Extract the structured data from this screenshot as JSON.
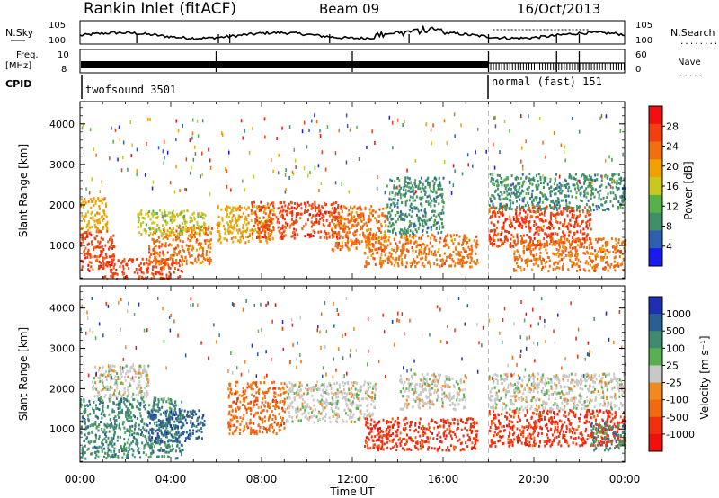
{
  "header": {
    "station": "Rankin Inlet (fitACF)",
    "beam": "Beam 09",
    "date": "16/Oct/2013"
  },
  "top_strip": {
    "nsky_label": "N.Sky",
    "nsearch_label": "N.Search",
    "nsky_ticks": [
      "10^5",
      "10^0"
    ],
    "nsearch_ticks": [
      "10^5",
      "10^0"
    ],
    "freq_label_1": "Freq.",
    "freq_label_2": "[MHz]",
    "freq_ticks": [
      "10",
      "8"
    ],
    "nave_label": "Nave",
    "nave_ticks": [
      "60",
      "0"
    ],
    "cpid_label": "CPID",
    "cpid_segments": [
      {
        "name": "twofsound 3501",
        "start_hour": 0,
        "end_hour": 18.0
      },
      {
        "name": "normal (fast) 151",
        "start_hour": 18.0,
        "end_hour": 24
      }
    ]
  },
  "colors": {
    "power": [
      "#1a1af0",
      "#2f5fb0",
      "#3f8f6a",
      "#58b048",
      "#c8c820",
      "#f0a000",
      "#f07010",
      "#f04010",
      "#f01010"
    ],
    "velocity": [
      "#1e2fb0",
      "#2a5f95",
      "#3f8a70",
      "#58b050",
      "#c8c8c8",
      "#f08a20",
      "#f06a10",
      "#f03010",
      "#f01010"
    ]
  },
  "chart_data": [
    {
      "type": "heatmap",
      "panel": "power",
      "xlabel": "",
      "ylabel": "Slant Range [km]",
      "xlim": [
        0,
        24
      ],
      "ylim": [
        180,
        4550
      ],
      "y_ticks": [
        1000,
        2000,
        3000,
        4000
      ],
      "colorbar": {
        "label": "Power [dB]",
        "ticks": [
          4,
          8,
          12,
          16,
          20,
          24,
          28
        ],
        "range": [
          0,
          32
        ]
      },
      "echo_bands": [
        {
          "start_hour": 0.0,
          "end_hour": 1.5,
          "range_low": 400,
          "range_high": 1400,
          "value": 27
        },
        {
          "start_hour": 0.0,
          "end_hour": 1.2,
          "range_low": 1400,
          "range_high": 2200,
          "value": 20
        },
        {
          "start_hour": 1.0,
          "end_hour": 4.5,
          "range_low": 200,
          "range_high": 700,
          "value": 28
        },
        {
          "start_hour": 3.0,
          "end_hour": 5.8,
          "range_low": 550,
          "range_high": 1500,
          "value": 26
        },
        {
          "start_hour": 2.5,
          "end_hour": 5.5,
          "range_low": 1300,
          "range_high": 1900,
          "value": 18
        },
        {
          "start_hour": 6.0,
          "end_hour": 8.5,
          "range_low": 1100,
          "range_high": 2000,
          "value": 22
        },
        {
          "start_hour": 7.5,
          "end_hour": 11.5,
          "range_low": 1200,
          "range_high": 2100,
          "value": 27
        },
        {
          "start_hour": 11.0,
          "end_hour": 13.5,
          "range_low": 900,
          "range_high": 2000,
          "value": 24
        },
        {
          "start_hour": 12.5,
          "end_hour": 17.5,
          "range_low": 500,
          "range_high": 1300,
          "value": 26
        },
        {
          "start_hour": 13.5,
          "end_hour": 16.0,
          "range_low": 1300,
          "range_high": 2700,
          "value": 10
        },
        {
          "start_hour": 18.0,
          "end_hour": 22.5,
          "range_low": 1000,
          "range_high": 2000,
          "value": 27
        },
        {
          "start_hour": 19.0,
          "end_hour": 24.0,
          "range_low": 400,
          "range_high": 1200,
          "value": 24
        },
        {
          "start_hour": 18.0,
          "end_hour": 24.0,
          "range_low": 1900,
          "range_high": 2800,
          "value": 12
        }
      ]
    },
    {
      "type": "heatmap",
      "panel": "velocity",
      "xlabel": "Time UT",
      "ylabel": "Slant Range [km]",
      "xlim": [
        0,
        24
      ],
      "ylim": [
        180,
        4550
      ],
      "x_ticks": [
        "00:00",
        "04:00",
        "08:00",
        "12:00",
        "16:00",
        "20:00",
        "00:00"
      ],
      "y_ticks": [
        1000,
        2000,
        3000,
        4000
      ],
      "colorbar": {
        "label": "Velocity [m s^-1]",
        "ticks": [
          "1000",
          "500",
          "100",
          "25",
          "-25",
          "-100",
          "-500",
          "-1000"
        ]
      },
      "echo_bands": [
        {
          "start_hour": 0.0,
          "end_hour": 4.5,
          "range_low": 300,
          "range_high": 1800,
          "value": 150
        },
        {
          "start_hour": 0.5,
          "end_hour": 3.0,
          "range_low": 1800,
          "range_high": 2600,
          "value": 0
        },
        {
          "start_hour": 3.0,
          "end_hour": 5.5,
          "range_low": 700,
          "range_high": 1500,
          "value": 400
        },
        {
          "start_hour": 6.5,
          "end_hour": 9.0,
          "range_low": 900,
          "range_high": 2200,
          "value": -150
        },
        {
          "start_hour": 9.0,
          "end_hour": 13.0,
          "range_low": 1200,
          "range_high": 2200,
          "value": 0
        },
        {
          "start_hour": 12.5,
          "end_hour": 17.5,
          "range_low": 500,
          "range_high": 1300,
          "value": -300
        },
        {
          "start_hour": 14.0,
          "end_hour": 17.0,
          "range_low": 1500,
          "range_high": 2400,
          "value": 0
        },
        {
          "start_hour": 18.0,
          "end_hour": 24.0,
          "range_low": 600,
          "range_high": 1500,
          "value": -300
        },
        {
          "start_hour": 18.0,
          "end_hour": 24.0,
          "range_low": 1500,
          "range_high": 2400,
          "value": 0
        },
        {
          "start_hour": 22.5,
          "end_hour": 24.0,
          "range_low": 500,
          "range_high": 1200,
          "value": 150
        }
      ]
    }
  ]
}
